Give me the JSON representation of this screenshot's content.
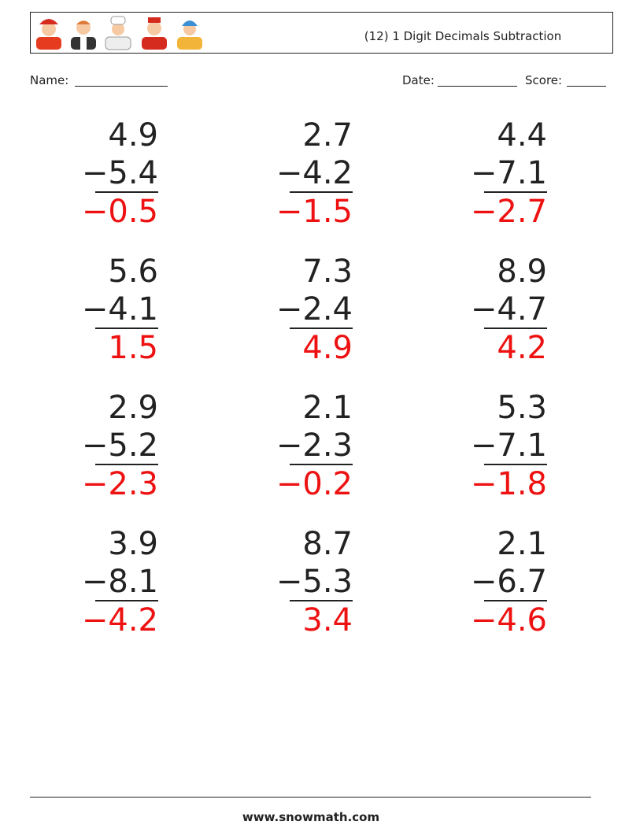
{
  "header": {
    "title": "(12) 1 Digit Decimals Subtraction"
  },
  "fields": {
    "name": "Name:",
    "date": "Date:",
    "score": "Score:"
  },
  "problems": [
    {
      "top": "4.9",
      "bottom": "−5.4",
      "answer": "−0.5"
    },
    {
      "top": "2.7",
      "bottom": "−4.2",
      "answer": "−1.5"
    },
    {
      "top": "4.4",
      "bottom": "−7.1",
      "answer": "−2.7"
    },
    {
      "top": "5.6",
      "bottom": "−4.1",
      "answer": "1.5"
    },
    {
      "top": "7.3",
      "bottom": "−2.4",
      "answer": "4.9"
    },
    {
      "top": "8.9",
      "bottom": "−4.7",
      "answer": "4.2"
    },
    {
      "top": "2.9",
      "bottom": "−5.2",
      "answer": "−2.3"
    },
    {
      "top": "2.1",
      "bottom": "−2.3",
      "answer": "−0.2"
    },
    {
      "top": "5.3",
      "bottom": "−7.1",
      "answer": "−1.8"
    },
    {
      "top": "3.9",
      "bottom": "−8.1",
      "answer": "−4.2"
    },
    {
      "top": "8.7",
      "bottom": "−5.3",
      "answer": "3.4"
    },
    {
      "top": "2.1",
      "bottom": "−6.7",
      "answer": "−4.6"
    }
  ],
  "footer": {
    "site": "www.snowmath.com"
  }
}
